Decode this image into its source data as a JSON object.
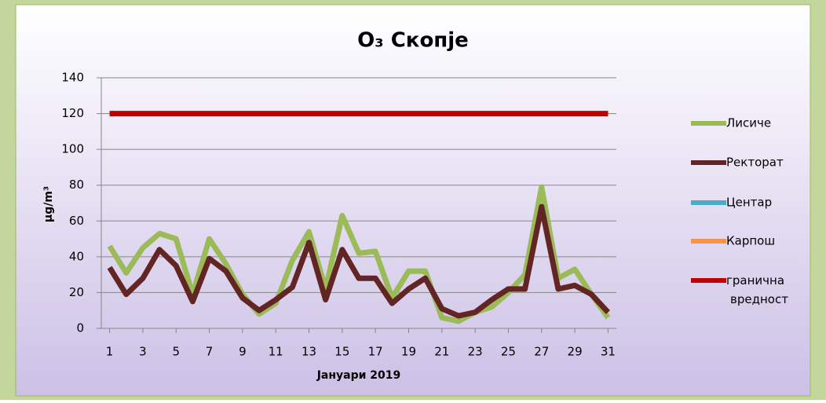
{
  "chart_data": {
    "type": "line",
    "title": "O₃ Скопје",
    "x_label": "Јануари 2019",
    "y_label": "μg/m³",
    "x": [
      1,
      2,
      3,
      4,
      5,
      6,
      7,
      8,
      9,
      10,
      11,
      12,
      13,
      14,
      15,
      16,
      17,
      18,
      19,
      20,
      21,
      22,
      23,
      24,
      25,
      26,
      27,
      28,
      29,
      30,
      31
    ],
    "xlim": [
      0.5,
      31.5
    ],
    "xticks": [
      1,
      3,
      5,
      7,
      9,
      11,
      13,
      15,
      17,
      19,
      21,
      23,
      25,
      27,
      29,
      31
    ],
    "ylim": [
      0,
      140
    ],
    "yticks": [
      0,
      20,
      40,
      60,
      80,
      100,
      120,
      140
    ],
    "grid": true,
    "legend": "right",
    "series": [
      {
        "name": "Лисиче",
        "color": "#9bbb59",
        "values": [
          46,
          31,
          45,
          53,
          50,
          19,
          50,
          36,
          19,
          8,
          14,
          38,
          54,
          22,
          63,
          42,
          43,
          17,
          32,
          32,
          6,
          4,
          9,
          12,
          20,
          30,
          79,
          28,
          33,
          19,
          6
        ]
      },
      {
        "name": "Ректорат",
        "color": "#632523",
        "values": [
          34,
          19,
          28,
          44,
          35,
          15,
          39,
          32,
          17,
          10,
          16,
          23,
          48,
          16,
          44,
          28,
          28,
          14,
          22,
          28,
          11,
          7,
          9,
          16,
          22,
          22,
          68,
          22,
          24,
          19,
          9
        ]
      },
      {
        "name": "Центар",
        "color": "#4bacc6",
        "values": [
          null,
          null,
          null,
          null,
          null,
          null,
          null,
          null,
          null,
          null,
          null,
          null,
          null,
          null,
          null,
          null,
          null,
          null,
          null,
          null,
          null,
          null,
          null,
          null,
          null,
          null,
          null,
          null,
          null,
          null,
          null
        ]
      },
      {
        "name": "Карпош",
        "color": "#f79646",
        "values": [
          null,
          null,
          null,
          null,
          null,
          null,
          null,
          null,
          null,
          null,
          null,
          null,
          null,
          null,
          null,
          null,
          null,
          null,
          null,
          null,
          null,
          null,
          null,
          null,
          null,
          null,
          null,
          null,
          null,
          null,
          null
        ]
      },
      {
        "name": "гранична вредност",
        "color": "#c00000",
        "values": [
          120,
          120,
          120,
          120,
          120,
          120,
          120,
          120,
          120,
          120,
          120,
          120,
          120,
          120,
          120,
          120,
          120,
          120,
          120,
          120,
          120,
          120,
          120,
          120,
          120,
          120,
          120,
          120,
          120,
          120,
          120
        ]
      }
    ]
  }
}
